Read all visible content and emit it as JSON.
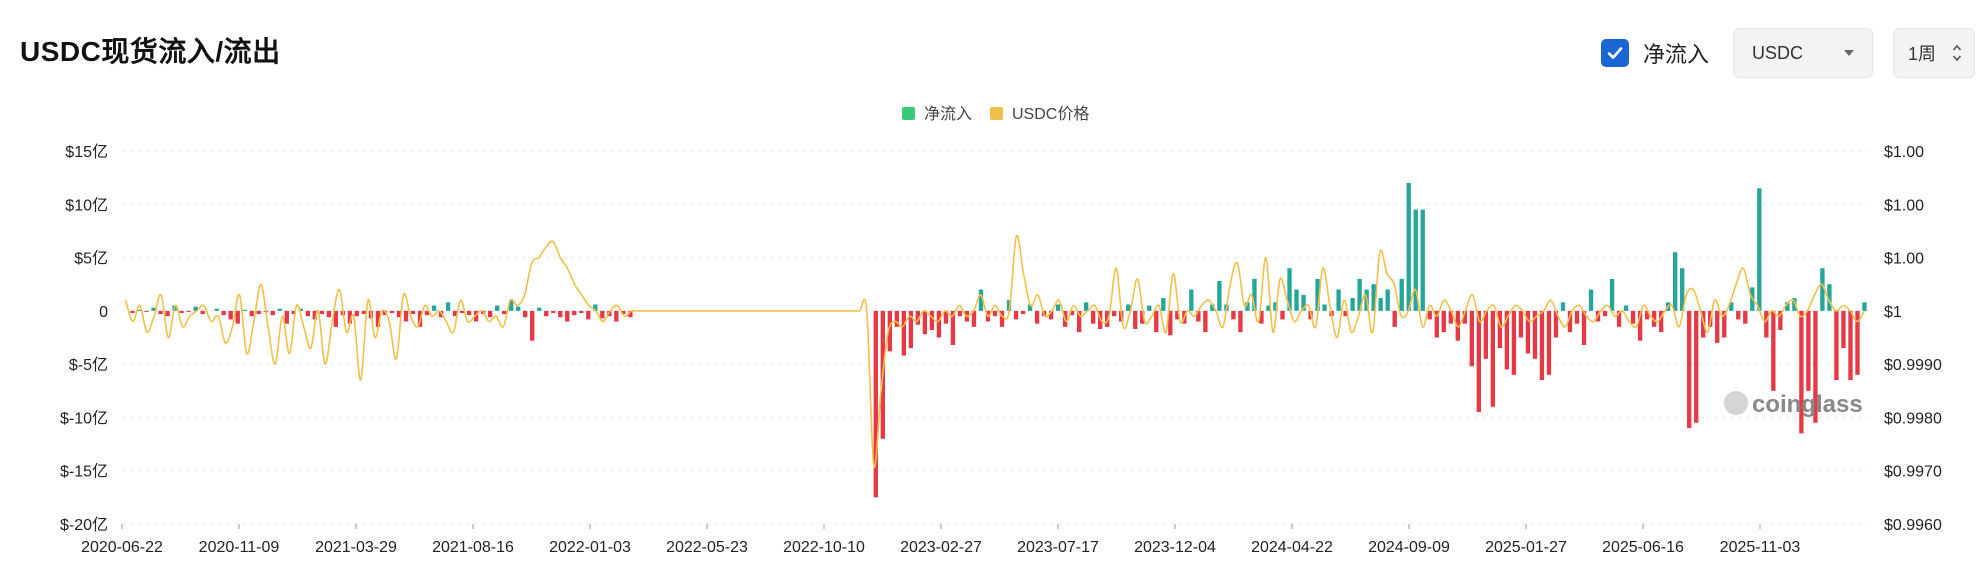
{
  "header": {
    "title": "USDC现货流入/流出"
  },
  "controls": {
    "checkbox_label": "净流入",
    "checkbox_checked": true,
    "asset_select": "USDC",
    "interval": "1周"
  },
  "colors": {
    "inflow": "#26a69a",
    "outflow": "#e63946",
    "price": "#f0c04a",
    "legend_inflow": "#3cc87a",
    "accent": "#1a66d2"
  },
  "watermark": "coinglass",
  "chart_data": {
    "type": "bar",
    "legend": [
      {
        "name": "净流入",
        "color": "#3cc87a"
      },
      {
        "name": "USDC价格",
        "color": "#f0c04a"
      }
    ],
    "legend_position": "top-center",
    "grid": true,
    "x_tick_labels": [
      "2020-06-22",
      "2020-11-09",
      "2021-03-29",
      "2021-08-16",
      "2022-01-03",
      "2022-05-23",
      "2022-10-10",
      "2023-02-27",
      "2023-07-17",
      "2023-12-04",
      "2024-04-22",
      "2024-09-09",
      "2025-01-27",
      "2025-06-16",
      "2025-11-03"
    ],
    "y_left_ticks": [
      "$15亿",
      "$10亿",
      "$5亿",
      "0",
      "$-5亿",
      "$-10亿",
      "$-15亿",
      "$-20亿"
    ],
    "y_left_values": [
      15,
      10,
      5,
      0,
      -5,
      -10,
      -15,
      -20
    ],
    "y_left_unit": "亿 USD",
    "y_right_ticks": [
      "$1.00",
      "$1.00",
      "$1.00",
      "$1",
      "$0.9990",
      "$0.9980",
      "$0.9970",
      "$0.9960"
    ],
    "y_right_values": [
      1.003,
      1.002,
      1.001,
      1.0,
      0.999,
      0.998,
      0.997,
      0.996
    ],
    "ylim_left": [
      -20,
      15
    ],
    "ylim_right": [
      0.996,
      1.003
    ],
    "series": [
      {
        "name": "净流入",
        "kind": "bar",
        "unit": "亿 USD",
        "values": [
          0,
          -0.2,
          0.1,
          -0.1,
          0.3,
          -0.3,
          -0.5,
          0.5,
          -0.2,
          -0.1,
          0.4,
          -0.3,
          0,
          0.2,
          -0.4,
          -0.8,
          -1.2,
          0.1,
          -0.5,
          -0.3,
          -0.1,
          -0.4,
          0.2,
          -1.2,
          -0.3,
          0.2,
          -0.5,
          -0.8,
          -0.3,
          -0.6,
          -1.5,
          -0.4,
          -1.2,
          -0.5,
          -0.3,
          -0.7,
          -1.5,
          -0.4,
          -0.2,
          -0.6,
          -1.0,
          -0.3,
          -1.5,
          -0.4,
          0.5,
          -0.6,
          0.8,
          -0.5,
          -0.2,
          -0.4,
          -1.0,
          -0.3,
          -0.6,
          0.5,
          -0.3,
          1.0,
          0.4,
          -0.6,
          -2.8,
          0.3,
          -0.5,
          -0.2,
          -0.6,
          -1.0,
          -0.4,
          -0.2,
          -0.8,
          0.6,
          -0.7,
          -0.5,
          -1.0,
          -0.3,
          -0.6,
          0,
          0,
          0,
          0,
          0,
          0,
          0,
          0,
          0,
          0,
          0,
          0,
          0,
          0,
          0,
          0,
          0,
          0,
          0,
          0,
          0,
          0,
          0,
          0,
          0,
          0,
          0,
          0,
          0,
          0,
          0,
          0,
          0,
          0,
          -17.5,
          -12,
          -3.8,
          -1.5,
          -4.2,
          -3.5,
          -1.3,
          -2.2,
          -1.8,
          -2.5,
          -1.2,
          -3.2,
          -0.5,
          -1.0,
          -1.5,
          2.0,
          -1.0,
          -0.5,
          -1.5,
          1.0,
          -0.8,
          -0.3,
          0.6,
          -1.2,
          -0.5,
          -0.8,
          0.6,
          -1.5,
          -0.4,
          -2.0,
          0.8,
          -1.2,
          -1.7,
          -1.5,
          -0.5,
          -1.0,
          0.6,
          -1.7,
          -1.2,
          0.5,
          -2.0,
          1.2,
          -2.3,
          -0.8,
          -1.2,
          2.0,
          -1.0,
          -2.0,
          0.6,
          2.8,
          0.6,
          -0.8,
          -2.0,
          0.8,
          3.0,
          -1.2,
          0.5,
          0.8,
          -0.8,
          4.0,
          2.0,
          1.5,
          -0.8,
          3.0,
          0.6,
          -0.5,
          2.0,
          -0.5,
          1.2,
          3.0,
          2.0,
          2.5,
          1.2,
          2.0,
          -1.5,
          3.0,
          12.0,
          9.5,
          9.5,
          -0.8,
          -2.5,
          -2.0,
          -1.2,
          -2.8,
          -1.2,
          -5.2,
          -9.5,
          -4.5,
          -9.0,
          -3.5,
          -5.5,
          -6.0,
          -2.5,
          -4.0,
          -4.5,
          -6.5,
          -6.0,
          -2.5,
          0.8,
          -2.0,
          -1.2,
          -3.2,
          2.0,
          -1.0,
          -0.5,
          3.0,
          -1.5,
          0.5,
          -1.2,
          -2.8,
          -0.8,
          -1.5,
          -2.0,
          0.8,
          5.5,
          4.0,
          -11.0,
          -10.5,
          -2.5,
          -1.5,
          -3.0,
          -2.5,
          0.8,
          -0.8,
          -1.2,
          2.2,
          11.5,
          -2.5,
          -7.5,
          -1.8,
          0.8,
          1.2,
          -11.5,
          -7.5,
          -10.5,
          4.0,
          2.5,
          -6.5,
          -3.5,
          -6.5,
          -6.0,
          0.8
        ]
      },
      {
        "name": "USDC价格",
        "kind": "line",
        "unit": "USD",
        "values": [
          1.0002,
          0.9998,
          1.0001,
          0.9996,
          0.9999,
          1.0003,
          0.9995,
          1.0001,
          0.9997,
          0.9999,
          1.0,
          1.0001,
          0.9998,
          0.9999,
          0.9994,
          0.9997,
          1.0003,
          0.9992,
          0.9998,
          1.0005,
          0.9997,
          0.999,
          0.9999,
          0.9992,
          1.0001,
          0.9997,
          0.9993,
          1.0,
          0.999,
          0.9998,
          1.0004,
          0.9996,
          0.9999,
          0.9987,
          1.0002,
          0.9995,
          1.0,
          0.9998,
          0.9991,
          1.0003,
          0.9999,
          0.9997,
          1.0001,
          0.9999,
          1.0,
          0.9998,
          0.9996,
          1.0002,
          0.9998,
          0.9999,
          1.0,
          0.9998,
          0.9999,
          0.9997,
          1.0002,
          1.0001,
          1.0003,
          1.0009,
          1.001,
          1.0012,
          1.0013,
          1.001,
          1.0008,
          1.0005,
          1.0003,
          1.0001,
          1.0,
          0.9998,
          1.0,
          1.0001,
          0.9999,
          1.0,
          1.0,
          1.0,
          1.0,
          1.0,
          1.0,
          1.0,
          1.0,
          1.0,
          1.0,
          1.0,
          1.0,
          1.0,
          1.0,
          1.0,
          1.0,
          1.0,
          1.0,
          1.0,
          1.0,
          1.0,
          1.0,
          1.0,
          1.0,
          1.0,
          1.0,
          1.0,
          1.0,
          1.0,
          1.0,
          1.0,
          1.0,
          1.0,
          1.0,
          0.9971,
          0.9985,
          0.9996,
          0.9998,
          0.9997,
          0.9999,
          0.9998,
          1.0,
          0.9999,
          0.9998,
          1.0,
          0.9999,
          1.0001,
          0.9999,
          1.0,
          1.0003,
          0.9999,
          1.0001,
          0.9999,
          1.0,
          1.0014,
          1.0007,
          1.0001,
          1.0003,
          0.9999,
          1.0,
          1.0002,
          0.9998,
          1.0001,
          0.9999,
          1.0,
          1.0001,
          0.9998,
          0.9999,
          1.0008,
          0.9997,
          1.0,
          1.0006,
          0.9998,
          0.9999,
          1.0001,
          0.9996,
          1.0007,
          0.9998,
          1.0,
          0.9999,
          1.0001,
          1.0002,
          1.0,
          0.9997,
          1.0005,
          1.0009,
          1.0001,
          1.0003,
          0.9998,
          1.001,
          0.9996,
          1.0006,
          1.0002,
          0.9998,
          1.0,
          1.0001,
          0.9997,
          1.0008,
          1.0001,
          0.9995,
          1.0002,
          0.9996,
          0.9999,
          1.0003,
          0.9996,
          1.0011,
          1.0007,
          1.0005,
          0.9999,
          1.0,
          1.0004,
          0.9997,
          1.0001,
          0.9999,
          1.0002,
          1.0,
          0.9997,
          1.0,
          1.0003,
          0.9998,
          1.0,
          1.0001,
          0.9997,
          0.9999,
          1.0001,
          1.0,
          0.9998,
          0.9999,
          1.0,
          1.0002,
          0.9999,
          0.9997,
          1.0,
          1.0001,
          0.9999,
          0.9998,
          1.0,
          1.0001,
          0.9999,
          1.0,
          0.9998,
          0.9997,
          1.0001,
          0.9999,
          0.9998,
          1.0,
          1.0001,
          0.9997,
          1.0003,
          1.0004,
          1.0,
          0.9996,
          1.0002,
          0.9999,
          1.0001,
          1.0005,
          1.0008,
          1.0003,
          1.0001,
          0.9998,
          1.0,
          0.9999,
          1.0001,
          1.0002,
          0.9999,
          1.0,
          1.0003,
          1.0005,
          1.0002,
          1.0,
          1.0001,
          1.0,
          0.9998,
          1.0
        ]
      }
    ]
  }
}
